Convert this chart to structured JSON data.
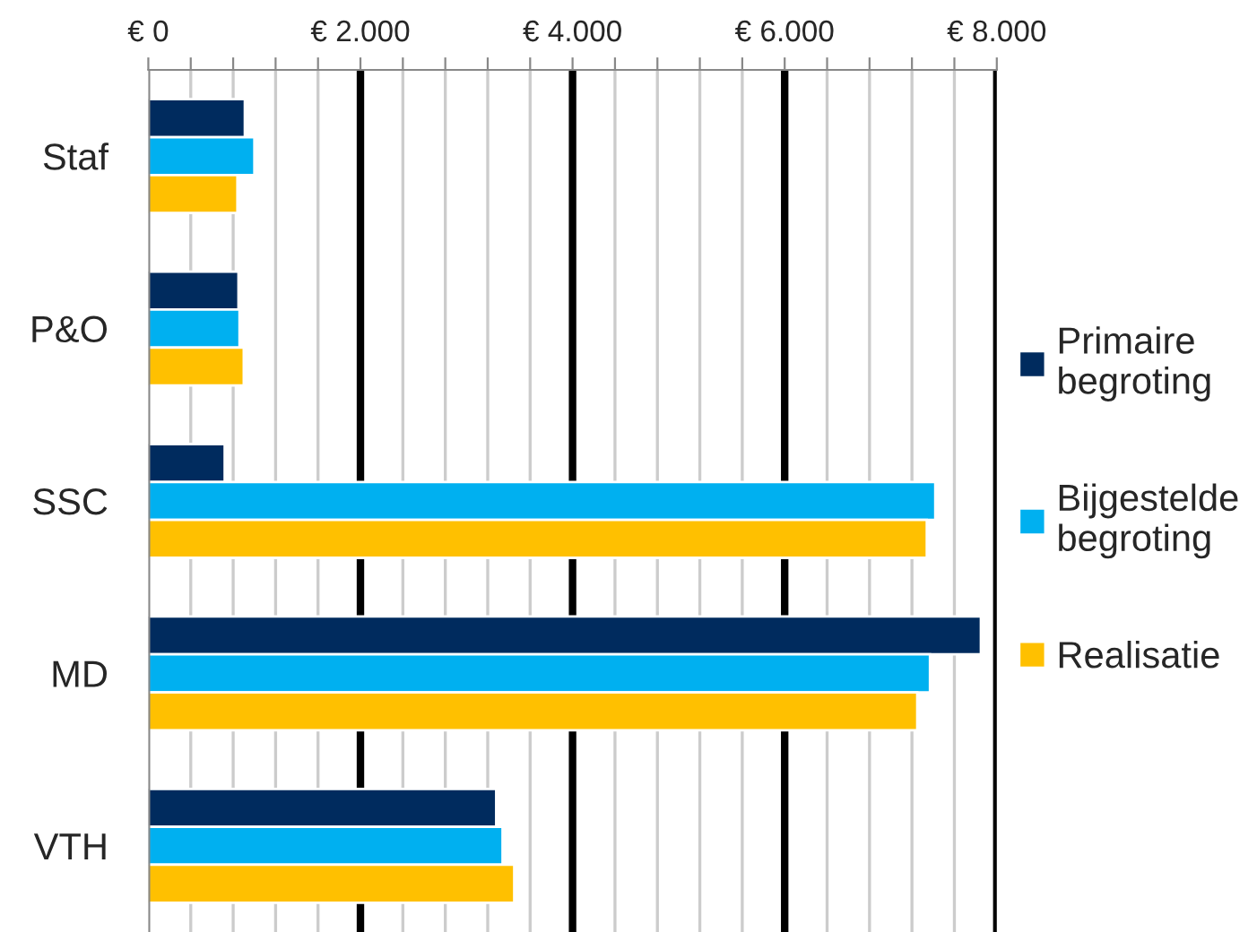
{
  "chart_data": {
    "type": "bar",
    "orientation": "horizontal",
    "categories": [
      "Staf",
      "P&O",
      "SSC",
      "MD",
      "VTH"
    ],
    "series": [
      {
        "name": "Primaire begroting",
        "color": "#002b5e",
        "values": [
          910,
          850,
          720,
          7850,
          3280
        ]
      },
      {
        "name": "Bijgestelde begroting",
        "color": "#00b0f0",
        "values": [
          1000,
          860,
          7420,
          7370,
          3340
        ]
      },
      {
        "name": "Realisatie",
        "color": "#ffc000",
        "values": [
          840,
          900,
          7340,
          7250,
          3450
        ]
      }
    ],
    "xlim": [
      0,
      8000
    ],
    "xticks": [
      {
        "value": 0,
        "label": "€ 0"
      },
      {
        "value": 400,
        "label": null
      },
      {
        "value": 800,
        "label": null
      },
      {
        "value": 1200,
        "label": null
      },
      {
        "value": 1600,
        "label": null
      },
      {
        "value": 2000,
        "label": "€ 2.000"
      },
      {
        "value": 2400,
        "label": null
      },
      {
        "value": 2800,
        "label": null
      },
      {
        "value": 3200,
        "label": null
      },
      {
        "value": 3600,
        "label": null
      },
      {
        "value": 4000,
        "label": "€ 4.000"
      },
      {
        "value": 4400,
        "label": null
      },
      {
        "value": 4800,
        "label": null
      },
      {
        "value": 5200,
        "label": null
      },
      {
        "value": 5600,
        "label": null
      },
      {
        "value": 6000,
        "label": "€ 6.000"
      },
      {
        "value": 6400,
        "label": null
      },
      {
        "value": 6800,
        "label": null
      },
      {
        "value": 7200,
        "label": null
      },
      {
        "value": 7600,
        "label": null
      },
      {
        "value": 8000,
        "label": "€ 8.000"
      }
    ],
    "grid": "x",
    "legend": "right"
  }
}
